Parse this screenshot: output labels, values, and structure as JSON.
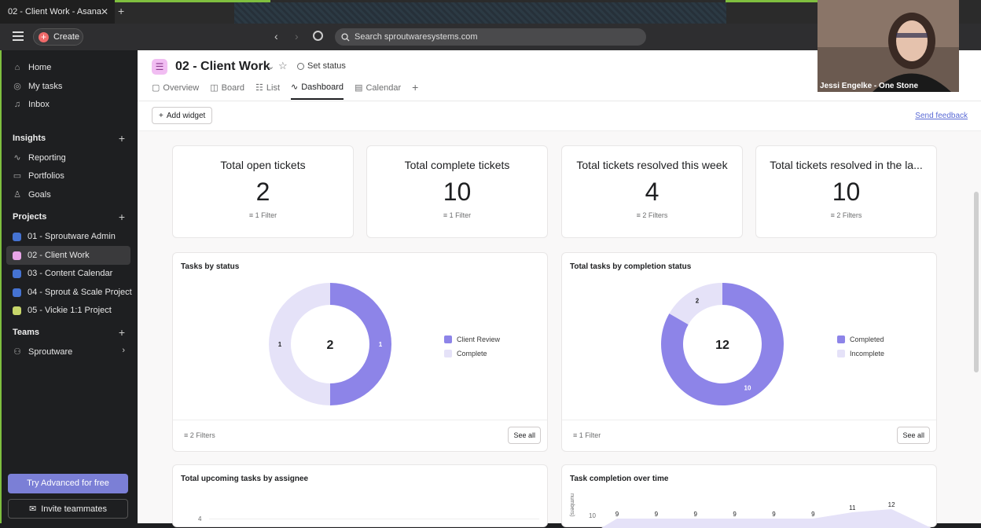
{
  "browser": {
    "tab_title": "02 - Client Work - Asana",
    "close": "✕",
    "new_tab": "+"
  },
  "header": {
    "create_label": "Create",
    "search_placeholder": "Search sproutwaresystems.com"
  },
  "sidebar": {
    "home": "Home",
    "my_tasks": "My tasks",
    "inbox": "Inbox",
    "insights": "Insights",
    "reporting": "Reporting",
    "portfolios": "Portfolios",
    "goals": "Goals",
    "projects": "Projects",
    "project_items": [
      {
        "label": "01 - Sproutware Admin",
        "color": "#4573d2"
      },
      {
        "label": "02 - Client Work",
        "color": "#e8a6e8"
      },
      {
        "label": "03 - Content Calendar",
        "color": "#4573d2"
      },
      {
        "label": "04 - Sprout & Scale Project",
        "color": "#4573d2"
      },
      {
        "label": "05 - Vickie 1:1 Project",
        "color": "#c7d66a"
      }
    ],
    "teams": "Teams",
    "team_item": "Sproutware",
    "try_advanced": "Try Advanced for free",
    "invite": "Invite teammates"
  },
  "project": {
    "title": "02 - Client Work",
    "set_status": "Set status",
    "tabs": [
      "Overview",
      "Board",
      "List",
      "Dashboard",
      "Calendar"
    ],
    "active_tab": "Dashboard",
    "add_widget": "Add widget",
    "send_feedback": "Send feedback"
  },
  "stats": [
    {
      "title": "Total open tickets",
      "value": "2",
      "filter": "1 Filter"
    },
    {
      "title": "Total complete tickets",
      "value": "10",
      "filter": "1 Filter"
    },
    {
      "title": "Total tickets resolved this week",
      "value": "4",
      "filter": "2 Filters"
    },
    {
      "title": "Total tickets resolved in the la...",
      "value": "10",
      "filter": "2 Filters"
    }
  ],
  "charts": {
    "tasks_by_status": {
      "title": "Tasks by status",
      "center": "2",
      "filter": "2 Filters",
      "see_all": "See all"
    },
    "completion_status": {
      "title": "Total tasks by completion status",
      "center": "12",
      "filter": "1 Filter",
      "see_all": "See all"
    },
    "upcoming": {
      "title": "Total upcoming tasks by assignee",
      "ytick": "4"
    },
    "over_time": {
      "title": "Task completion over time",
      "ytick": "10",
      "ylabel_fragment": "numbers)",
      "labels": [
        "9",
        "9",
        "9",
        "9",
        "9",
        "9",
        "11",
        "12"
      ]
    }
  },
  "chart_data": [
    {
      "type": "pie",
      "title": "Tasks by status",
      "categories": [
        "Client Review",
        "Complete"
      ],
      "values": [
        1,
        1
      ],
      "colors": [
        "#8d84e8",
        "#e5e2f8"
      ]
    },
    {
      "type": "pie",
      "title": "Total tasks by completion status",
      "categories": [
        "Completed",
        "Incomplete"
      ],
      "values": [
        10,
        2
      ],
      "colors": [
        "#8d84e8",
        "#e5e2f8"
      ]
    }
  ],
  "webcam": {
    "name": "Jessi Engelke - One Stone"
  }
}
